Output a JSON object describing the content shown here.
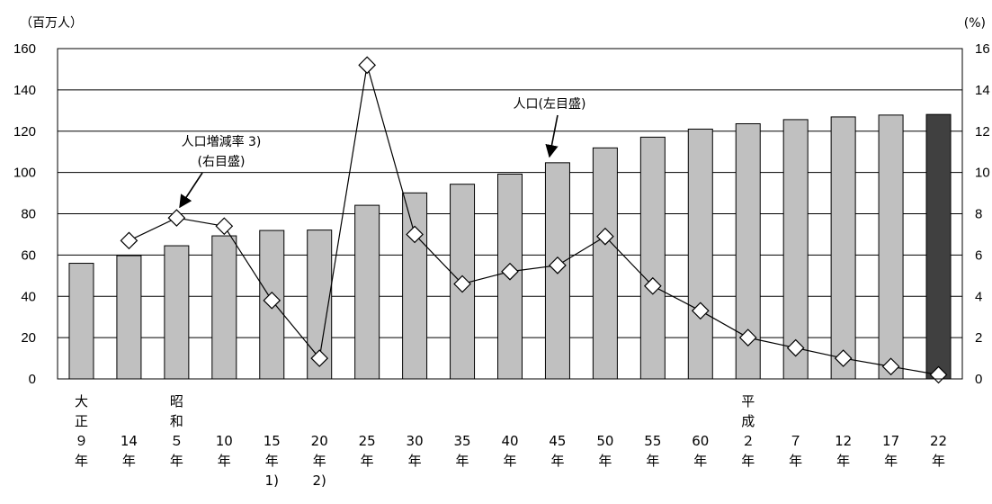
{
  "chart_data": {
    "type": "bar",
    "y_left_unit": "（百万人）",
    "y_right_unit": "(%)",
    "y_left_ticks": [
      "0",
      "20",
      "40",
      "60",
      "80",
      "100",
      "120",
      "140",
      "160"
    ],
    "y_right_ticks": [
      "0",
      "2",
      "4",
      "6",
      "8",
      "10",
      "12",
      "14",
      "16"
    ],
    "ylim_left": [
      0,
      160
    ],
    "ylim_right": [
      0,
      16
    ],
    "grid": true,
    "categories": [
      [
        "大",
        "正",
        "９",
        "年"
      ],
      [
        "",
        "",
        "14",
        "年"
      ],
      [
        "昭",
        "和",
        "５",
        "年"
      ],
      [
        "",
        "",
        "10",
        "年"
      ],
      [
        "",
        "",
        "15",
        "年",
        "1)"
      ],
      [
        "",
        "",
        "20",
        "年",
        "2)"
      ],
      [
        "",
        "",
        "25",
        "年"
      ],
      [
        "",
        "",
        "30",
        "年"
      ],
      [
        "",
        "",
        "35",
        "年"
      ],
      [
        "",
        "",
        "40",
        "年"
      ],
      [
        "",
        "",
        "45",
        "年"
      ],
      [
        "",
        "",
        "50",
        "年"
      ],
      [
        "",
        "",
        "55",
        "年"
      ],
      [
        "",
        "",
        "60",
        "年"
      ],
      [
        "平",
        "成",
        "２",
        "年"
      ],
      [
        "",
        "",
        "７",
        "年"
      ],
      [
        "",
        "",
        "12",
        "年"
      ],
      [
        "",
        "",
        "17",
        "年"
      ],
      [
        "",
        "",
        "22",
        "年"
      ]
    ],
    "series": [
      {
        "name": "人口(左目盛)",
        "type": "bar",
        "axis": "left",
        "values": [
          56.0,
          59.7,
          64.5,
          69.3,
          71.9,
          72.1,
          84.1,
          90.1,
          94.3,
          99.2,
          104.7,
          111.9,
          117.1,
          121.0,
          123.6,
          125.6,
          126.9,
          127.8,
          128.1
        ],
        "color": "#c0c0c0",
        "highlight_last_color": "#404040"
      },
      {
        "name": "人口増減率 3)(右目盛)",
        "type": "line",
        "axis": "right",
        "values": [
          null,
          6.7,
          7.8,
          7.4,
          3.8,
          1.0,
          15.2,
          7.0,
          4.6,
          5.2,
          5.5,
          6.9,
          4.5,
          3.3,
          2.0,
          1.5,
          1.0,
          0.6,
          0.2
        ],
        "color": "#000000"
      }
    ],
    "annotations": [
      {
        "lines": [
          "人口増減率 3)",
          "(右目盛)"
        ]
      },
      {
        "lines": [
          "人口(左目盛)"
        ]
      }
    ]
  }
}
